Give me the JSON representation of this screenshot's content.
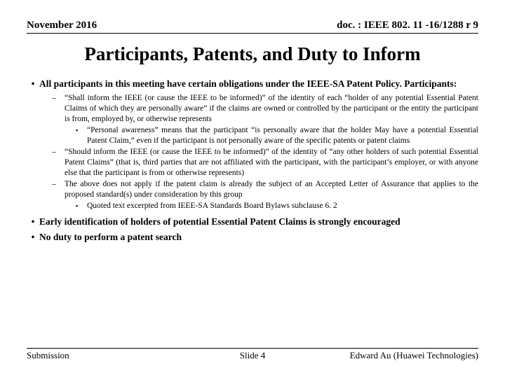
{
  "header": {
    "date": "November 2016",
    "doc": "doc. : IEEE 802. 11 -16/1288 r 9"
  },
  "title": "Participants, Patents, and Duty to Inform",
  "bullets": {
    "main1": "All participants in this meeting have certain obligations under the IEEE-SA Patent Policy.  Participants:",
    "sub1": "“Shall inform the IEEE (or cause the IEEE to be informed)” of the identity of each “holder of any potential Essential Patent Claims of which they are personally aware” if the claims are owned or controlled by the participant or the entity the participant is from, employed by, or otherwise represents",
    "subsub1": "“Personal awareness” means that the participant “is personally aware that the holder May have a potential Essential Patent Claim,” even if the participant is not personally aware of the specific patents or patent claims",
    "sub2": "“Should inform the IEEE (or cause the IEEE to be informed)” of the identity of “any other holders of such potential Essential Patent Claims” (that is, third parties that are not affiliated with the participant, with the participant’s employer, or with anyone else that the participant is from or otherwise represents)",
    "sub3": "The above does not apply if the patent claim is already the subject of an Accepted Letter of Assurance that applies to the proposed standard(s) under consideration by this group",
    "subsub2": "Quoted text excerpted from IEEE-SA Standards Board Bylaws subclause 6. 2",
    "main2": "Early identification of holders of potential Essential Patent Claims is strongly encouraged",
    "main3": "No duty to perform a patent search"
  },
  "footer": {
    "left": "Submission",
    "center": "Slide 4",
    "right": "Edward Au (Huawei Technologies)"
  }
}
